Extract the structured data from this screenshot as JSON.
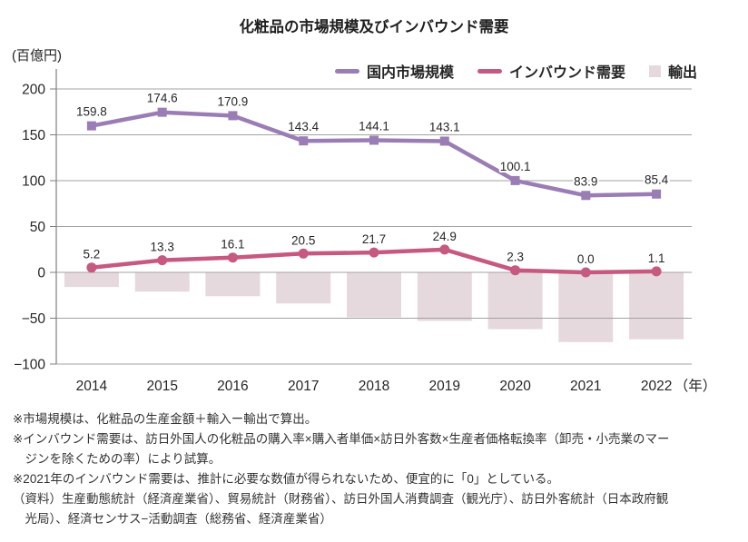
{
  "chart_data": {
    "type": "combo-line-bar",
    "title": "化粧品の市場規模及びインバウンド需要",
    "unit_label": "(百億円)",
    "x_axis_suffix": "（年）",
    "categories": [
      "2014",
      "2015",
      "2016",
      "2017",
      "2018",
      "2019",
      "2020",
      "2021",
      "2022"
    ],
    "ylim": [
      -100,
      200
    ],
    "yticks": [
      200,
      150,
      100,
      50,
      0,
      -50,
      -100
    ],
    "grid": true,
    "legend_position": "top-right",
    "series": [
      {
        "name": "国内市場規模",
        "type": "line",
        "marker": "square",
        "color": "#9a7db5",
        "values": [
          159.8,
          174.6,
          170.9,
          143.4,
          144.1,
          143.1,
          100.1,
          83.9,
          85.4
        ],
        "labeled": true
      },
      {
        "name": "インバウンド需要",
        "type": "line",
        "marker": "circle",
        "color": "#c5597f",
        "values": [
          5.2,
          13.3,
          16.1,
          20.5,
          21.7,
          24.9,
          2.3,
          0.0,
          1.1
        ],
        "labeled": true
      },
      {
        "name": "輸出",
        "type": "bar",
        "color": "#e6d9de",
        "values": [
          -16,
          -21,
          -26,
          -34,
          -49,
          -53,
          -62,
          -76,
          -73
        ],
        "labeled": false
      }
    ]
  },
  "footnotes": [
    {
      "lines": [
        "※市場規模は、化粧品の生産金額＋輸入ー輸出で算出。"
      ]
    },
    {
      "lines": [
        "※インバウンド需要は、訪日外国人の化粧品の購入率×購入者単価×訪日外客数×生産者価格転換率（卸売・小売業のマー",
        "ジンを除くための率）により試算。"
      ]
    },
    {
      "lines": [
        "※2021年のインバウンド需要は、推計に必要な数値が得られないため、便宜的に「0」としている。"
      ]
    },
    {
      "lines": [
        "（資料）生産動態統計（経済産業省）、貿易統計（財務省）、訪日外国人消費調査（観光庁）、訪日外客統計（日本政府観",
        "光局）、経済センサス−活動調査（総務省、経済産業省）"
      ]
    }
  ]
}
